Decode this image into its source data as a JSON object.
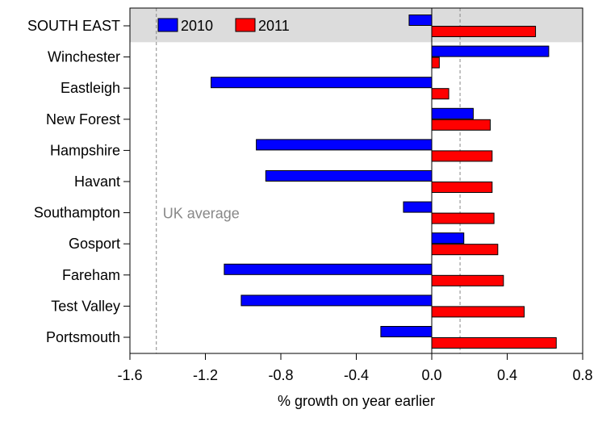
{
  "chart_data": {
    "type": "bar",
    "orientation": "horizontal",
    "categories": [
      "SOUTH EAST",
      "Winchester",
      "Eastleigh",
      "New Forest",
      "Hampshire",
      "Havant",
      "Southampton",
      "Gosport",
      "Fareham",
      "Test Valley",
      "Portsmouth"
    ],
    "highlighted_category": "SOUTH EAST",
    "series": [
      {
        "name": "2010",
        "color": "#0000ff",
        "values": [
          -0.12,
          0.62,
          -1.17,
          0.22,
          -0.93,
          -0.88,
          -0.15,
          0.17,
          -1.1,
          -1.01,
          -0.27
        ]
      },
      {
        "name": "2011",
        "color": "#ff0000",
        "values": [
          0.55,
          0.04,
          0.09,
          0.31,
          0.32,
          0.32,
          0.33,
          0.35,
          0.38,
          0.49,
          0.66
        ]
      }
    ],
    "xlabel": "% growth on year earlier",
    "xlim": [
      -1.6,
      0.8
    ],
    "xticks": [
      -1.6,
      -1.2,
      -0.8,
      -0.4,
      0.0,
      0.4,
      0.8
    ],
    "xtick_labels": [
      "-1.6",
      "-1.2",
      "-0.8",
      "-0.4",
      "0.0",
      "0.4",
      "0.8"
    ],
    "reference_lines": [
      {
        "label": "UK average",
        "value": -1.46,
        "color": "#888888"
      },
      {
        "label": "",
        "value": 0.15,
        "color": "#888888"
      }
    ],
    "legend": {
      "placement": "top-left",
      "entries": [
        "2010",
        "2011"
      ]
    },
    "grid": false
  }
}
